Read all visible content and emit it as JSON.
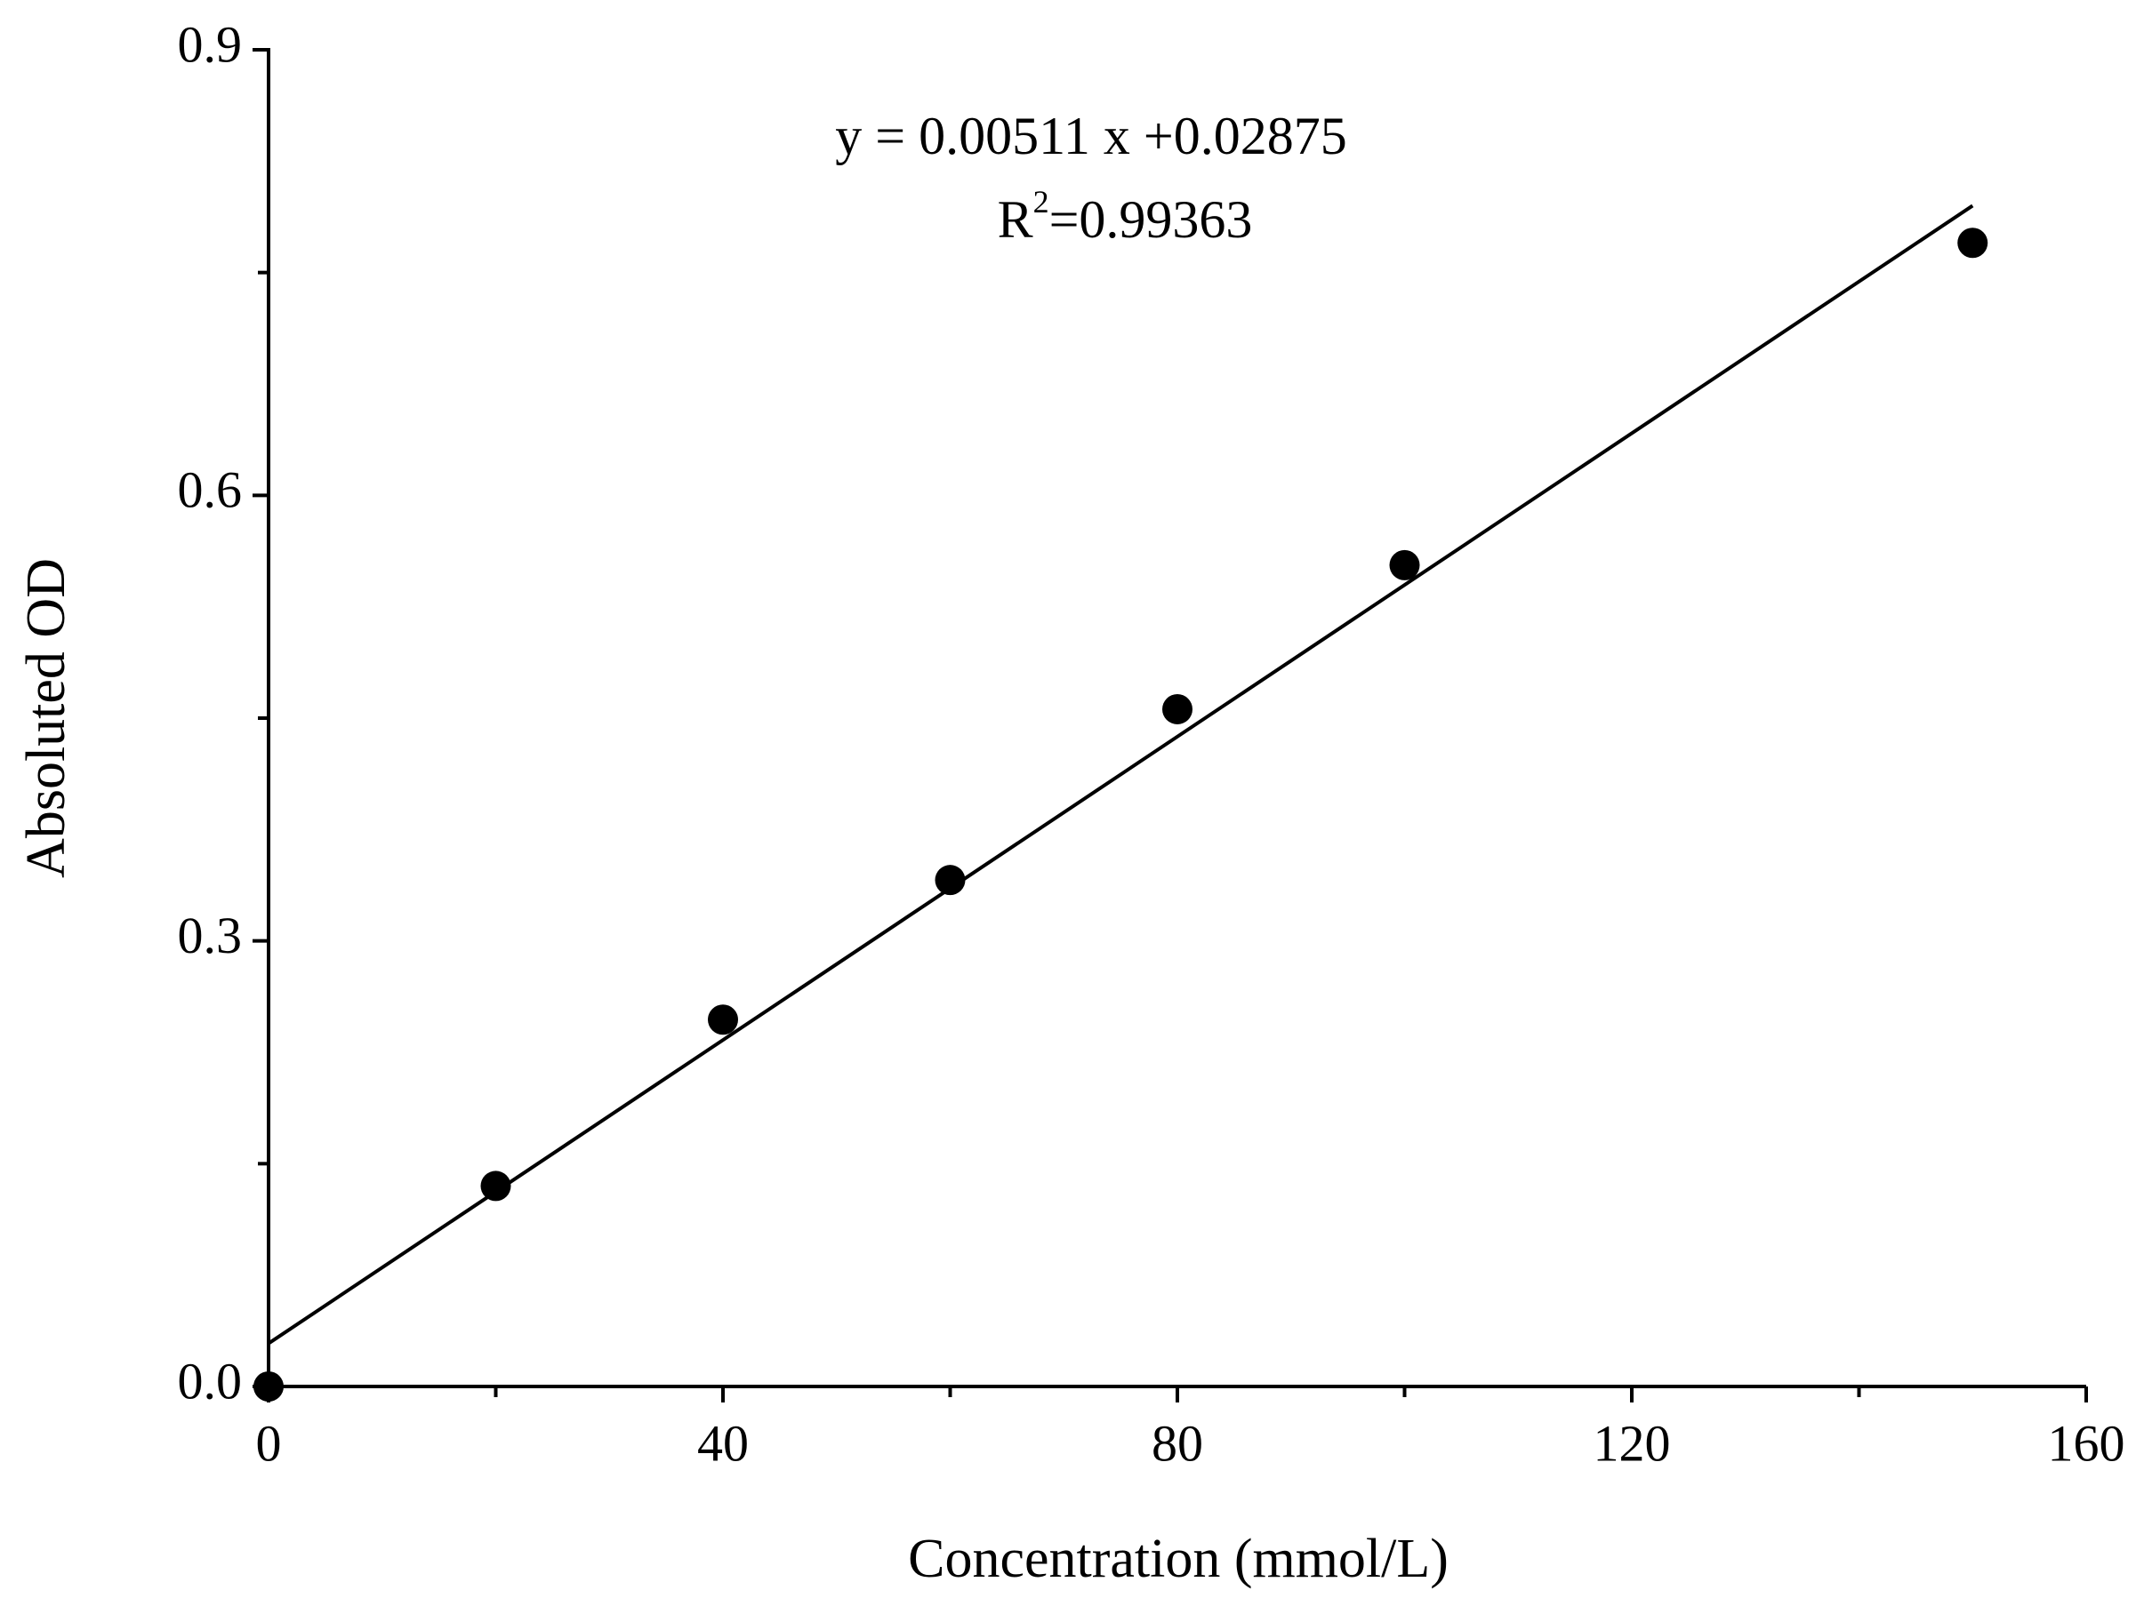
{
  "chart_data": {
    "type": "scatter",
    "x_label": "Concentration (mmol/L)",
    "y_label": "Absoluted OD",
    "equation": "y = 0.00511 x +0.02875",
    "r_squared": {
      "base": "R",
      "sup": "2",
      "rest": "=0.99363"
    },
    "x": [
      0,
      20,
      40,
      60,
      80,
      100,
      150
    ],
    "values": [
      0,
      0.135,
      0.247,
      0.341,
      0.456,
      0.553,
      0.77
    ],
    "color": "#000000",
    "fit_line": {
      "x": [
        0,
        150
      ],
      "values": [
        0.029,
        0.795
      ]
    },
    "xlim": [
      0,
      160
    ],
    "xticks": [
      0,
      40,
      80,
      120,
      160
    ],
    "xminor": [
      20,
      60,
      100,
      140
    ],
    "ylim": [
      0,
      0.9
    ],
    "yticks": [
      {
        "value": 0,
        "label": "0.0"
      },
      0.3,
      0.6,
      0.9
    ],
    "yminor": [
      0.15,
      0.45,
      0.75
    ],
    "grid": false
  }
}
